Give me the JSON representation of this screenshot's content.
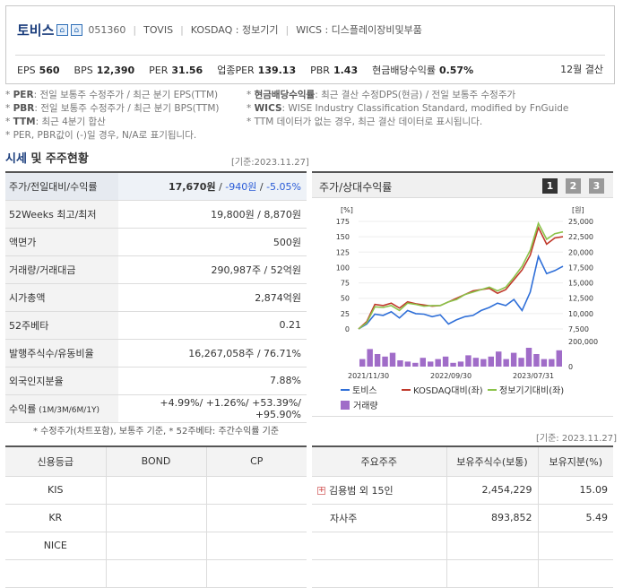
{
  "header": {
    "name": "토비스",
    "code": "051360",
    "english": "TOVIS",
    "market": "KOSDAQ : 정보기기",
    "wics": "WICS : 디스플레이장비및부품",
    "metrics": [
      {
        "label": "EPS",
        "value": "560"
      },
      {
        "label": "BPS",
        "value": "12,390"
      },
      {
        "label": "PER",
        "value": "31.56"
      },
      {
        "label": "업종PER",
        "value": "139.13"
      },
      {
        "label": "PBR",
        "value": "1.43"
      },
      {
        "label": "현금배당수익률",
        "value": "0.57%"
      }
    ],
    "settlement": "12월 결산"
  },
  "notes": {
    "left": [
      {
        "key": "PER",
        "text": ": 전일 보통주 수정주가 / 최근 분기 EPS(TTM)"
      },
      {
        "key": "PBR",
        "text": ": 전일 보통주 수정주가 / 최근 분기 BPS(TTM)"
      },
      {
        "key": "TTM",
        "text": ": 최근 4분기 합산"
      },
      {
        "key": "",
        "text": "PER, PBR값이 (-)일 경우, N/A로 표기됩니다."
      }
    ],
    "right": [
      {
        "key": "현금배당수익률",
        "text": ": 최근 결산 수정DPS(현금) / 전일 보통주 수정주가"
      },
      {
        "key": "WICS",
        "text": ": WISE Industry Classification Standard, modified by FnGuide"
      },
      {
        "key": "",
        "text": "TTM 데이터가 없는 경우, 최근 결산 데이터로 표시됩니다."
      }
    ]
  },
  "section": {
    "title_a": "시세",
    "title_b": " 및 주주현황",
    "base": "[기준:2023.11.27]",
    "base2": "[기준: 2023.11.27]"
  },
  "quote": {
    "row0": {
      "label": "주가/전일대비/수익률",
      "price": "17,670원",
      "slash": " / ",
      "change": "-940원",
      "slash2": " / ",
      "rate": "-5.05%"
    },
    "rows": [
      {
        "label": "52Weeks 최고/최저",
        "value": "19,800원 / 8,870원"
      },
      {
        "label": "액면가",
        "value": "500원"
      },
      {
        "label": "거래량/거래대금",
        "value": "290,987주 / 52억원"
      },
      {
        "label": "시가총액",
        "value": "2,874억원"
      },
      {
        "label": "52주베타",
        "value": "0.21"
      },
      {
        "label": "발행주식수/유동비율",
        "value": "16,267,058주 / 76.71%"
      },
      {
        "label": "외국인지분율",
        "value": "7.88%"
      }
    ],
    "ret": {
      "label": "수익률",
      "label_sub": " (1M/3M/6M/1Y)",
      "value": "+4.99%/ +1.26%/ +53.39%/ +95.90%"
    },
    "footnote": "* 수정주가(차트포함), 보통주 기준, * 52주베타: 주간수익률 기준"
  },
  "chart_panel": {
    "title": "주가/상대수익률",
    "pages": [
      "1",
      "2",
      "3"
    ]
  },
  "chart_data": {
    "type": "line",
    "x_ticks": [
      "2021/11/30",
      "2022/09/30",
      "2023/07/31"
    ],
    "left_axis": {
      "unit": "[%]",
      "ticks": [
        "175",
        "150",
        "125",
        "100",
        "75",
        "50",
        "25",
        "0"
      ],
      "range": [
        0,
        175
      ]
    },
    "right_axis": {
      "unit": "[원]",
      "ticks": [
        "25,000",
        "22,500",
        "20,000",
        "17,500",
        "15,000",
        "12,500",
        "10,000",
        "7,500"
      ],
      "range": [
        7500,
        25000
      ]
    },
    "volume_axis": {
      "ticks": [
        "200,000",
        "0"
      ],
      "range": [
        0,
        200000
      ]
    },
    "series": [
      {
        "name": "토비스",
        "color": "#2f6fd8",
        "values": [
          0,
          8,
          24,
          22,
          28,
          18,
          30,
          25,
          24,
          20,
          23,
          8,
          15,
          20,
          22,
          30,
          35,
          42,
          38,
          48,
          30,
          60,
          118,
          90,
          95,
          102
        ]
      },
      {
        "name": "KOSDAQ대비(좌)",
        "color": "#c0392b",
        "values": [
          0,
          12,
          40,
          38,
          42,
          34,
          44,
          41,
          39,
          37,
          38,
          44,
          50,
          56,
          62,
          64,
          66,
          58,
          64,
          80,
          96,
          120,
          165,
          138,
          148,
          150
        ]
      },
      {
        "name": "정보기기대비(좌)",
        "color": "#8bc34a",
        "values": [
          0,
          10,
          36,
          35,
          38,
          30,
          42,
          40,
          37,
          38,
          38,
          44,
          48,
          56,
          60,
          64,
          68,
          62,
          68,
          84,
          102,
          128,
          172,
          146,
          155,
          158
        ]
      }
    ],
    "volume": {
      "name": "거래량",
      "color": "#a06cc8",
      "values": [
        60000,
        140000,
        100000,
        80000,
        110000,
        50000,
        40000,
        30000,
        70000,
        40000,
        60000,
        80000,
        30000,
        40000,
        90000,
        70000,
        60000,
        80000,
        120000,
        60000,
        110000,
        70000,
        150000,
        100000,
        60000,
        60000,
        130000
      ]
    }
  },
  "credit": {
    "headers": [
      "신용등급",
      "BOND",
      "CP"
    ],
    "rows": [
      [
        "KIS",
        "",
        ""
      ],
      [
        "KR",
        "",
        ""
      ],
      [
        "NICE",
        "",
        ""
      ],
      [
        "",
        "",
        ""
      ]
    ]
  },
  "holders": {
    "headers": [
      "주요주주",
      "보유주식수(보통)",
      "보유지분(%)"
    ],
    "rows": [
      {
        "name": "김용범 외 15인",
        "shares": "2,454,229",
        "pct": "15.09",
        "expand": "+"
      },
      {
        "name": "자사주",
        "shares": "893,852",
        "pct": "5.49",
        "expand": ""
      },
      {
        "name": "",
        "shares": "",
        "pct": "",
        "expand": ""
      },
      {
        "name": "",
        "shares": "",
        "pct": "",
        "expand": ""
      }
    ]
  }
}
